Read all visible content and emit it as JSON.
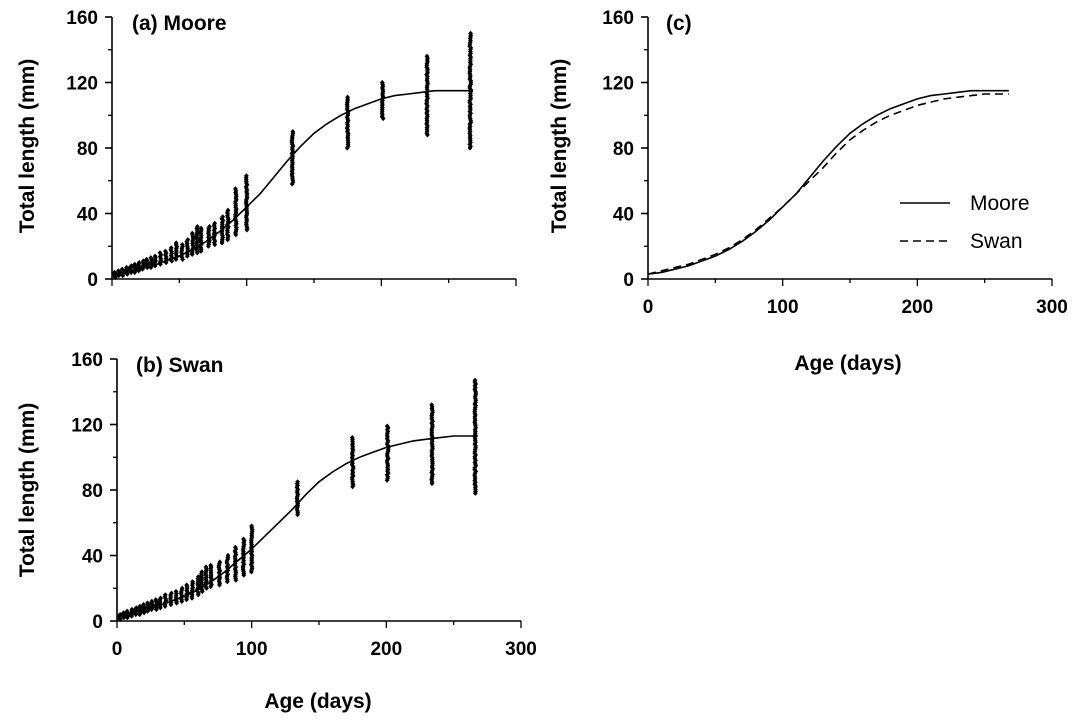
{
  "chart_data": [
    {
      "type": "scatter",
      "title": "(a) Moore",
      "xlabel": "",
      "ylabel": "Total length (mm)",
      "xlim": [
        0,
        300
      ],
      "ylim": [
        0,
        160
      ],
      "yticks": [
        "0",
        "40",
        "80",
        "120",
        "160"
      ],
      "xtick_labels_shown": false,
      "grid": false,
      "age_groups": [
        {
          "x": 2,
          "ymin": 1,
          "ymax": 4
        },
        {
          "x": 5,
          "ymin": 2,
          "ymax": 5
        },
        {
          "x": 8,
          "ymin": 2,
          "ymax": 6
        },
        {
          "x": 11,
          "ymin": 3,
          "ymax": 7
        },
        {
          "x": 14,
          "ymin": 4,
          "ymax": 8
        },
        {
          "x": 17,
          "ymin": 4,
          "ymax": 9
        },
        {
          "x": 20,
          "ymin": 5,
          "ymax": 10
        },
        {
          "x": 23,
          "ymin": 6,
          "ymax": 11
        },
        {
          "x": 26,
          "ymin": 7,
          "ymax": 12
        },
        {
          "x": 29,
          "ymin": 7,
          "ymax": 13
        },
        {
          "x": 32,
          "ymin": 8,
          "ymax": 14
        },
        {
          "x": 36,
          "ymin": 9,
          "ymax": 16
        },
        {
          "x": 40,
          "ymin": 10,
          "ymax": 17
        },
        {
          "x": 44,
          "ymin": 11,
          "ymax": 19
        },
        {
          "x": 48,
          "ymin": 12,
          "ymax": 22
        },
        {
          "x": 52,
          "ymin": 12,
          "ymax": 21
        },
        {
          "x": 56,
          "ymin": 14,
          "ymax": 24
        },
        {
          "x": 60,
          "ymin": 15,
          "ymax": 28
        },
        {
          "x": 63,
          "ymin": 16,
          "ymax": 32
        },
        {
          "x": 66,
          "ymin": 17,
          "ymax": 31
        },
        {
          "x": 72,
          "ymin": 20,
          "ymax": 32
        },
        {
          "x": 76,
          "ymin": 21,
          "ymax": 34
        },
        {
          "x": 82,
          "ymin": 22,
          "ymax": 38
        },
        {
          "x": 86,
          "ymin": 24,
          "ymax": 42
        },
        {
          "x": 92,
          "ymin": 27,
          "ymax": 55
        },
        {
          "x": 100,
          "ymin": 30,
          "ymax": 63
        },
        {
          "x": 134,
          "ymin": 58,
          "ymax": 90
        },
        {
          "x": 175,
          "ymin": 80,
          "ymax": 111
        },
        {
          "x": 201,
          "ymin": 98,
          "ymax": 120
        },
        {
          "x": 234,
          "ymin": 88,
          "ymax": 136
        },
        {
          "x": 266,
          "ymin": 80,
          "ymax": 150
        }
      ],
      "fitted_curve": {
        "x": [
          0,
          10,
          20,
          30,
          40,
          50,
          60,
          70,
          80,
          90,
          100,
          110,
          120,
          130,
          140,
          150,
          160,
          170,
          180,
          190,
          200,
          210,
          220,
          230,
          240,
          250,
          260,
          268
        ],
        "y": [
          3,
          4,
          6,
          8,
          11,
          14,
          18,
          23,
          29,
          36,
          44,
          52,
          62,
          72,
          81,
          89,
          95,
          100,
          104,
          107,
          110,
          112,
          113,
          114,
          115,
          115,
          115,
          115
        ]
      }
    },
    {
      "type": "scatter",
      "title": "(b) Swan",
      "xlabel": "Age (days)",
      "ylabel": "Total length (mm)",
      "xlim": [
        0,
        300
      ],
      "ylim": [
        0,
        160
      ],
      "xticks": [
        "0",
        "100",
        "200",
        "300"
      ],
      "yticks": [
        "0",
        "40",
        "80",
        "120",
        "160"
      ],
      "grid": false,
      "age_groups": [
        {
          "x": 2,
          "ymin": 1,
          "ymax": 4
        },
        {
          "x": 5,
          "ymin": 2,
          "ymax": 5
        },
        {
          "x": 8,
          "ymin": 2,
          "ymax": 6
        },
        {
          "x": 11,
          "ymin": 3,
          "ymax": 7
        },
        {
          "x": 14,
          "ymin": 4,
          "ymax": 8
        },
        {
          "x": 17,
          "ymin": 4,
          "ymax": 9
        },
        {
          "x": 20,
          "ymin": 5,
          "ymax": 10
        },
        {
          "x": 23,
          "ymin": 6,
          "ymax": 11
        },
        {
          "x": 26,
          "ymin": 7,
          "ymax": 12
        },
        {
          "x": 29,
          "ymin": 7,
          "ymax": 13
        },
        {
          "x": 32,
          "ymin": 8,
          "ymax": 14
        },
        {
          "x": 36,
          "ymin": 9,
          "ymax": 16
        },
        {
          "x": 40,
          "ymin": 10,
          "ymax": 17
        },
        {
          "x": 44,
          "ymin": 11,
          "ymax": 18
        },
        {
          "x": 48,
          "ymin": 12,
          "ymax": 20
        },
        {
          "x": 52,
          "ymin": 13,
          "ymax": 22
        },
        {
          "x": 56,
          "ymin": 14,
          "ymax": 24
        },
        {
          "x": 60,
          "ymin": 16,
          "ymax": 27
        },
        {
          "x": 63,
          "ymin": 18,
          "ymax": 30
        },
        {
          "x": 66,
          "ymin": 20,
          "ymax": 33
        },
        {
          "x": 70,
          "ymin": 21,
          "ymax": 34
        },
        {
          "x": 76,
          "ymin": 22,
          "ymax": 36
        },
        {
          "x": 82,
          "ymin": 24,
          "ymax": 40
        },
        {
          "x": 88,
          "ymin": 25,
          "ymax": 45
        },
        {
          "x": 94,
          "ymin": 28,
          "ymax": 50
        },
        {
          "x": 100,
          "ymin": 30,
          "ymax": 58
        },
        {
          "x": 134,
          "ymin": 65,
          "ymax": 85
        },
        {
          "x": 175,
          "ymin": 82,
          "ymax": 112
        },
        {
          "x": 201,
          "ymin": 86,
          "ymax": 119
        },
        {
          "x": 234,
          "ymin": 84,
          "ymax": 132
        },
        {
          "x": 266,
          "ymin": 78,
          "ymax": 147
        }
      ],
      "fitted_curve": {
        "x": [
          0,
          10,
          20,
          30,
          40,
          50,
          60,
          70,
          80,
          90,
          100,
          110,
          120,
          130,
          140,
          150,
          160,
          170,
          180,
          190,
          200,
          210,
          220,
          230,
          240,
          250,
          260,
          268
        ],
        "y": [
          3,
          5,
          7,
          9,
          12,
          15,
          19,
          24,
          30,
          37,
          44,
          52,
          60,
          68,
          77,
          85,
          91,
          96,
          100,
          103,
          106,
          108,
          110,
          111,
          112,
          113,
          113,
          113
        ]
      }
    },
    {
      "type": "line",
      "title": "(c)",
      "xlabel": "Age (days)",
      "ylabel": "Total length (mm)",
      "xlim": [
        0,
        300
      ],
      "ylim": [
        0,
        160
      ],
      "xticks": [
        "0",
        "100",
        "200",
        "300"
      ],
      "yticks": [
        "0",
        "40",
        "80",
        "120",
        "160"
      ],
      "grid": false,
      "legend_position": "right-middle",
      "x": [
        0,
        10,
        20,
        30,
        40,
        50,
        60,
        70,
        80,
        90,
        100,
        110,
        120,
        130,
        140,
        150,
        160,
        170,
        180,
        190,
        200,
        210,
        220,
        230,
        240,
        250,
        260,
        268
      ],
      "series": [
        {
          "name": "Moore",
          "style": "solid",
          "values": [
            3,
            4,
            6,
            8,
            11,
            14,
            18,
            23,
            29,
            36,
            44,
            52,
            62,
            72,
            81,
            89,
            95,
            100,
            104,
            107,
            110,
            112,
            113,
            114,
            115,
            115,
            115,
            115
          ]
        },
        {
          "name": "Swan",
          "style": "dashed",
          "values": [
            3,
            5,
            7,
            9,
            12,
            15,
            19,
            24,
            30,
            37,
            44,
            52,
            60,
            68,
            77,
            85,
            91,
            96,
            100,
            103,
            106,
            108,
            110,
            111,
            112,
            113,
            113,
            113
          ]
        }
      ]
    }
  ]
}
